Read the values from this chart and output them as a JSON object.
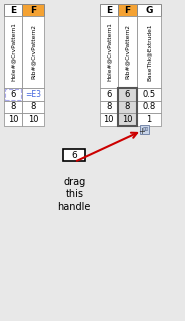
{
  "fig_width": 1.85,
  "fig_height": 3.21,
  "dpi": 100,
  "background": "#e8e8e8",
  "table1": {
    "col_labels": [
      "E",
      "F"
    ],
    "col_header_colors": [
      "#ffffff",
      "#f4a233"
    ],
    "rot_texts": [
      "Hole#@CrvPattern1",
      "Rib#@CrvPattern2"
    ],
    "data_rows": [
      {
        "E": "6",
        "F": "=E3",
        "E_dashed": true,
        "F_blue": true
      },
      {
        "E": "8",
        "F": "8"
      },
      {
        "E": "10",
        "F": "10"
      }
    ]
  },
  "table2": {
    "col_labels": [
      "E",
      "F",
      "G"
    ],
    "col_header_colors": [
      "#ffffff",
      "#f4a233",
      "#ffffff"
    ],
    "rot_texts": [
      "Hole#@CrvPattern1",
      "Rib#@CrvPattern2",
      "BaseThk@Extrude1"
    ],
    "data_rows": [
      {
        "E": "6",
        "F": "6",
        "G": "0.5"
      },
      {
        "E": "8",
        "F": "8",
        "G": "0.8"
      },
      {
        "E": "10",
        "F": "10",
        "G": "1"
      }
    ]
  },
  "colors": {
    "header_orange": "#f4a233",
    "blue_text": "#4466dd",
    "dashed_border": "#aaaaee",
    "drag_icon_bg": "#c8d4e8",
    "drag_icon_border": "#7788aa",
    "arrow_color": "#cc0000",
    "cell_border": "#999999",
    "sel_fill": "#d8d8d8",
    "sel_border": "#555555"
  }
}
